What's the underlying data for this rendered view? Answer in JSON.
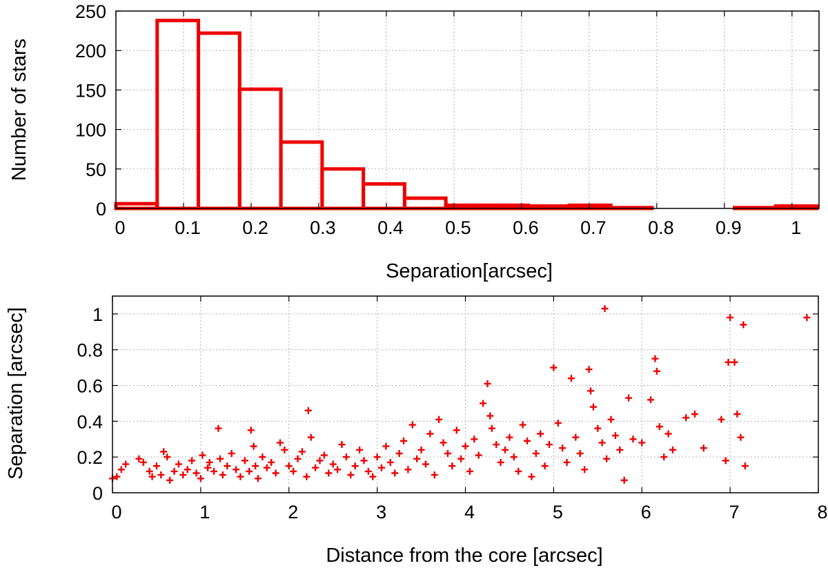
{
  "colors": {
    "series": "#ee0000"
  },
  "chart_data": [
    {
      "type": "bar",
      "xlabel": "Separation[arcsec]",
      "ylabel": "Number of stars",
      "xlim": [
        0,
        1.04
      ],
      "ylim": [
        0,
        250
      ],
      "xticks": [
        0,
        0.1,
        0.2,
        0.3,
        0.4,
        0.5,
        0.6,
        0.7,
        0.8,
        0.9,
        1
      ],
      "xtick_labels": [
        "0",
        "0.1",
        "0.2",
        "0.3",
        "0.4",
        "0.5",
        "0.6",
        "0.7",
        "0.8",
        "0.9",
        "1"
      ],
      "yticks": [
        0,
        50,
        100,
        150,
        200,
        250
      ],
      "ytick_labels": [
        "0",
        "50",
        "100",
        "150",
        "200",
        "250"
      ],
      "grid": true,
      "bin_edges": [
        0,
        0.061,
        0.122,
        0.183,
        0.244,
        0.305,
        0.366,
        0.427,
        0.488,
        0.549,
        0.61,
        0.671,
        0.732,
        0.793,
        0.854,
        0.915,
        0.976,
        1.037
      ],
      "values": [
        6,
        238,
        222,
        151,
        84,
        50,
        31,
        13,
        4,
        4,
        3,
        4,
        1,
        0,
        0,
        1,
        3
      ]
    },
    {
      "type": "scatter",
      "marker": "+",
      "xlabel": "Distance from the core [arcsec]",
      "ylabel": "Separation [arcsec]",
      "xlim": [
        0,
        8
      ],
      "ylim": [
        0,
        1.1
      ],
      "xticks": [
        0,
        1,
        2,
        3,
        4,
        5,
        6,
        7,
        8
      ],
      "xtick_labels": [
        "0",
        "1",
        "2",
        "3",
        "4",
        "5",
        "6",
        "7",
        "8"
      ],
      "yticks": [
        0,
        0.2,
        0.4,
        0.6,
        0.8,
        1
      ],
      "ytick_labels": [
        "0",
        "0.2",
        "0.4",
        "0.6",
        "0.8",
        "1"
      ],
      "grid": true,
      "points": [
        [
          0.0,
          0.08
        ],
        [
          0.05,
          0.09
        ],
        [
          0.1,
          0.13
        ],
        [
          0.15,
          0.16
        ],
        [
          0.3,
          0.19
        ],
        [
          0.35,
          0.17
        ],
        [
          0.42,
          0.12
        ],
        [
          0.45,
          0.09
        ],
        [
          0.5,
          0.15
        ],
        [
          0.55,
          0.1
        ],
        [
          0.58,
          0.23
        ],
        [
          0.62,
          0.2
        ],
        [
          0.65,
          0.07
        ],
        [
          0.7,
          0.12
        ],
        [
          0.75,
          0.16
        ],
        [
          0.8,
          0.1
        ],
        [
          0.85,
          0.13
        ],
        [
          0.9,
          0.18
        ],
        [
          0.95,
          0.11
        ],
        [
          1.0,
          0.08
        ],
        [
          1.02,
          0.21
        ],
        [
          1.08,
          0.14
        ],
        [
          1.1,
          0.17
        ],
        [
          1.15,
          0.12
        ],
        [
          1.2,
          0.36
        ],
        [
          1.22,
          0.19
        ],
        [
          1.25,
          0.1
        ],
        [
          1.3,
          0.15
        ],
        [
          1.35,
          0.22
        ],
        [
          1.4,
          0.13
        ],
        [
          1.45,
          0.09
        ],
        [
          1.5,
          0.18
        ],
        [
          1.55,
          0.12
        ],
        [
          1.57,
          0.35
        ],
        [
          1.6,
          0.26
        ],
        [
          1.62,
          0.15
        ],
        [
          1.65,
          0.08
        ],
        [
          1.7,
          0.2
        ],
        [
          1.75,
          0.14
        ],
        [
          1.8,
          0.17
        ],
        [
          1.85,
          0.11
        ],
        [
          1.9,
          0.28
        ],
        [
          1.95,
          0.24
        ],
        [
          2.0,
          0.15
        ],
        [
          2.05,
          0.12
        ],
        [
          2.1,
          0.19
        ],
        [
          2.15,
          0.23
        ],
        [
          2.2,
          0.09
        ],
        [
          2.22,
          0.46
        ],
        [
          2.25,
          0.31
        ],
        [
          2.3,
          0.14
        ],
        [
          2.35,
          0.18
        ],
        [
          2.4,
          0.21
        ],
        [
          2.45,
          0.11
        ],
        [
          2.5,
          0.16
        ],
        [
          2.55,
          0.13
        ],
        [
          2.6,
          0.27
        ],
        [
          2.65,
          0.2
        ],
        [
          2.7,
          0.1
        ],
        [
          2.75,
          0.15
        ],
        [
          2.8,
          0.24
        ],
        [
          2.85,
          0.18
        ],
        [
          2.9,
          0.12
        ],
        [
          2.95,
          0.09
        ],
        [
          3.0,
          0.2
        ],
        [
          3.05,
          0.14
        ],
        [
          3.1,
          0.26
        ],
        [
          3.15,
          0.17
        ],
        [
          3.2,
          0.11
        ],
        [
          3.25,
          0.22
        ],
        [
          3.3,
          0.29
        ],
        [
          3.35,
          0.13
        ],
        [
          3.4,
          0.38
        ],
        [
          3.45,
          0.19
        ],
        [
          3.5,
          0.24
        ],
        [
          3.55,
          0.16
        ],
        [
          3.6,
          0.33
        ],
        [
          3.65,
          0.1
        ],
        [
          3.7,
          0.41
        ],
        [
          3.75,
          0.28
        ],
        [
          3.8,
          0.22
        ],
        [
          3.85,
          0.15
        ],
        [
          3.9,
          0.35
        ],
        [
          3.95,
          0.19
        ],
        [
          4.0,
          0.26
        ],
        [
          4.05,
          0.12
        ],
        [
          4.1,
          0.3
        ],
        [
          4.15,
          0.21
        ],
        [
          4.2,
          0.5
        ],
        [
          4.25,
          0.61
        ],
        [
          4.28,
          0.43
        ],
        [
          4.3,
          0.36
        ],
        [
          4.35,
          0.27
        ],
        [
          4.4,
          0.17
        ],
        [
          4.45,
          0.24
        ],
        [
          4.5,
          0.31
        ],
        [
          4.55,
          0.2
        ],
        [
          4.6,
          0.12
        ],
        [
          4.65,
          0.38
        ],
        [
          4.7,
          0.29
        ],
        [
          4.75,
          0.09
        ],
        [
          4.8,
          0.22
        ],
        [
          4.85,
          0.33
        ],
        [
          4.9,
          0.15
        ],
        [
          4.95,
          0.27
        ],
        [
          5.0,
          0.7
        ],
        [
          5.05,
          0.39
        ],
        [
          5.1,
          0.25
        ],
        [
          5.15,
          0.17
        ],
        [
          5.2,
          0.64
        ],
        [
          5.25,
          0.31
        ],
        [
          5.3,
          0.22
        ],
        [
          5.35,
          0.13
        ],
        [
          5.4,
          0.69
        ],
        [
          5.42,
          0.57
        ],
        [
          5.45,
          0.48
        ],
        [
          5.5,
          0.36
        ],
        [
          5.55,
          0.28
        ],
        [
          5.58,
          1.03
        ],
        [
          5.6,
          0.19
        ],
        [
          5.65,
          0.41
        ],
        [
          5.7,
          0.32
        ],
        [
          5.75,
          0.24
        ],
        [
          5.8,
          0.07
        ],
        [
          5.85,
          0.53
        ],
        [
          5.9,
          0.3
        ],
        [
          6.0,
          0.28
        ],
        [
          6.1,
          0.52
        ],
        [
          6.15,
          0.75
        ],
        [
          6.17,
          0.68
        ],
        [
          6.2,
          0.37
        ],
        [
          6.25,
          0.2
        ],
        [
          6.3,
          0.33
        ],
        [
          6.35,
          0.24
        ],
        [
          6.5,
          0.42
        ],
        [
          6.6,
          0.44
        ],
        [
          6.7,
          0.25
        ],
        [
          6.9,
          0.41
        ],
        [
          6.95,
          0.18
        ],
        [
          6.98,
          0.73
        ],
        [
          7.0,
          0.98
        ],
        [
          7.05,
          0.73
        ],
        [
          7.08,
          0.44
        ],
        [
          7.12,
          0.31
        ],
        [
          7.15,
          0.94
        ],
        [
          7.17,
          0.15
        ],
        [
          7.87,
          0.98
        ]
      ]
    }
  ]
}
